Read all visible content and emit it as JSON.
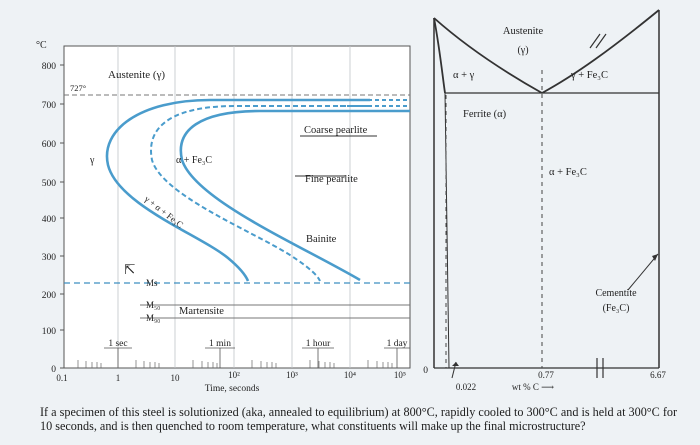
{
  "ttt": {
    "unit": "°C",
    "y_ticks": [
      "800",
      "700",
      "600",
      "500",
      "400",
      "300",
      "200",
      "100",
      "0"
    ],
    "x_ticks": [
      "0.1",
      "1",
      "10",
      "10²",
      "10³",
      "10⁴",
      "10⁵"
    ],
    "x_label": "Time, seconds",
    "time_marks": [
      "1 sec",
      "1 min",
      "1 hour",
      "1 day"
    ],
    "eutectoid_temp": "727°",
    "regions": {
      "austenite": "Austenite (γ)",
      "gamma": "γ",
      "alpha_fe3c": "α + Fe₃C",
      "gamma_alpha_fe3c": "γ + α + Fe₃C",
      "coarse_pearlite": "Coarse pearlite",
      "fine_pearlite": "Fine pearlite",
      "bainite": "Bainite",
      "ms": "Ms",
      "m50": "M₅₀",
      "m90": "M₉₀",
      "martensite": "Martensite"
    }
  },
  "phase": {
    "austenite": "Austenite",
    "gamma": "(γ)",
    "alpha_gamma": "α + γ",
    "gamma_fe3c": "γ + Fe₃C",
    "ferrite": "Ferrite (α)",
    "alpha_fe3c": "α + Fe₃C",
    "cementite": "Cementite",
    "cementite_formula": "(Fe₃C)",
    "x_zero": "0",
    "x_0022": "0.022",
    "x_077": "0.77",
    "x_667": "6.67",
    "x_label": "wt % C ⟶"
  },
  "question": "If a specimen of this steel is solutionized (aka, annealed to equilibrium) at 800°C, rapidly cooled to 300°C and is held at 300°C for 10 seconds, and is then quenched to room temperature, what constituents will make up the final microstructure?"
}
